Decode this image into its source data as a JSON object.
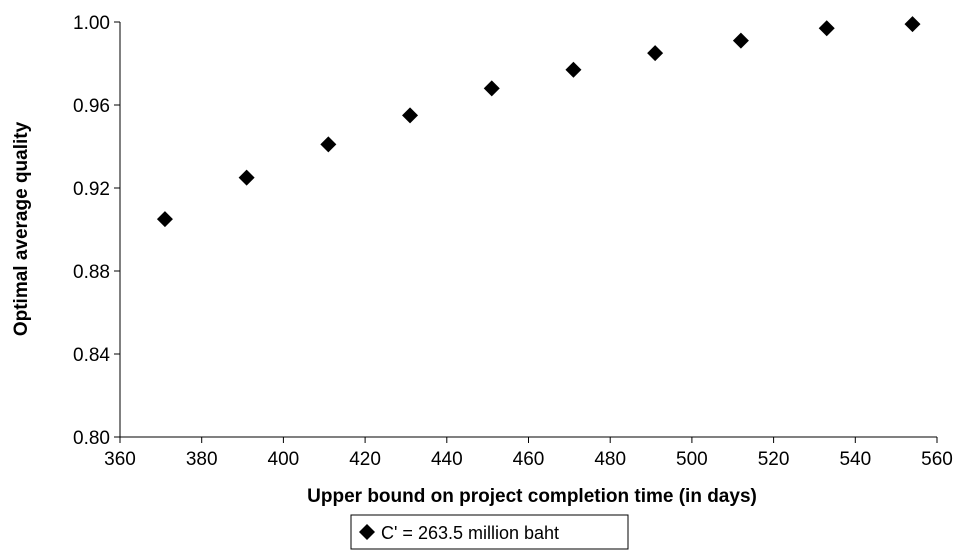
{
  "chart_data": {
    "type": "scatter",
    "title": "",
    "xlabel": "Upper bound on project completion time (in days)",
    "ylabel": "Optimal average quality",
    "xlim": [
      360,
      560
    ],
    "ylim": [
      0.8,
      1.0
    ],
    "x_ticks": [
      "360",
      "380",
      "400",
      "420",
      "440",
      "460",
      "480",
      "500",
      "520",
      "540",
      "560"
    ],
    "y_ticks": [
      "0.80",
      "0.84",
      "0.88",
      "0.92",
      "0.96",
      "1.00"
    ],
    "grid": false,
    "legend_position": "bottom-center",
    "marker": "diamond",
    "marker_color": "#000000",
    "series": [
      {
        "name": "C' = 263.5 million baht",
        "points": [
          {
            "x": 371,
            "y": 0.905
          },
          {
            "x": 391,
            "y": 0.925
          },
          {
            "x": 411,
            "y": 0.941
          },
          {
            "x": 431,
            "y": 0.955
          },
          {
            "x": 451,
            "y": 0.968
          },
          {
            "x": 471,
            "y": 0.977
          },
          {
            "x": 491,
            "y": 0.985
          },
          {
            "x": 512,
            "y": 0.991
          },
          {
            "x": 533,
            "y": 0.997
          },
          {
            "x": 554,
            "y": 0.999
          }
        ]
      }
    ]
  }
}
